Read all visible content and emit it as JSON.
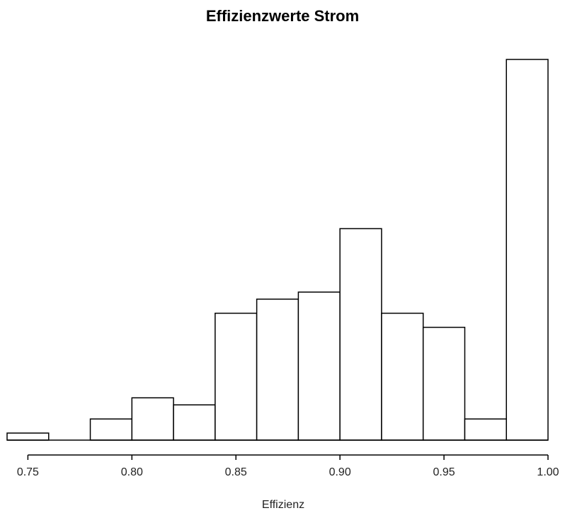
{
  "chart_data": {
    "type": "bar",
    "title": "Effizienzwerte Strom",
    "xlabel": "Effizienz",
    "ylabel": "",
    "bin_edges": [
      0.74,
      0.76,
      0.78,
      0.8,
      0.82,
      0.84,
      0.86,
      0.88,
      0.9,
      0.92,
      0.94,
      0.96,
      0.98,
      1.0
    ],
    "values": [
      1,
      0,
      3,
      6,
      5,
      18,
      20,
      21,
      30,
      18,
      16,
      3,
      54
    ],
    "xlim": [
      0.74,
      1.0
    ],
    "ylim": [
      0,
      54
    ],
    "x_ticks": [
      {
        "value": 0.75,
        "label": "0.75"
      },
      {
        "value": 0.8,
        "label": "0.80"
      },
      {
        "value": 0.85,
        "label": "0.85"
      },
      {
        "value": 0.9,
        "label": "0.90"
      },
      {
        "value": 0.95,
        "label": "0.95"
      },
      {
        "value": 1.0,
        "label": "1.00"
      }
    ],
    "y_axis_shown": false,
    "grid": false,
    "bar_fill": "#ffffff",
    "bar_stroke": "#000000"
  }
}
